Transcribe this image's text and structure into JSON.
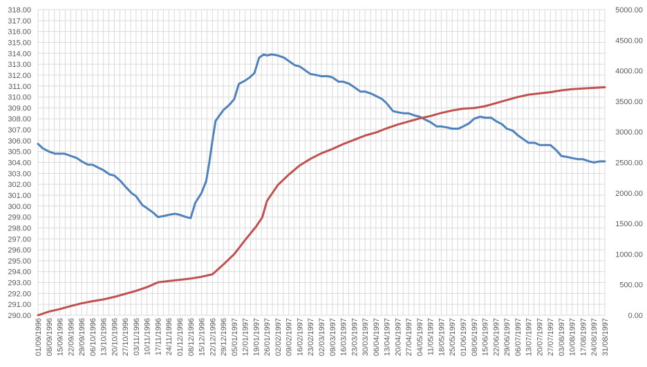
{
  "chart_data": {
    "type": "line",
    "title": "",
    "xlabel": "",
    "ylabel_left": "",
    "ylabel_right": "",
    "grid": true,
    "legend": "none",
    "x_tick_labels": [
      "01/09/1996",
      "08/09/1996",
      "15/09/1996",
      "22/09/1996",
      "29/09/1996",
      "06/10/1996",
      "13/10/1996",
      "20/10/1996",
      "27/10/1996",
      "03/11/1996",
      "10/11/1996",
      "17/11/1996",
      "24/11/1996",
      "01/12/1996",
      "08/12/1996",
      "15/12/1996",
      "22/12/1996",
      "29/12/1996",
      "05/01/1997",
      "12/01/1997",
      "19/01/1997",
      "26/01/1997",
      "02/02/1997",
      "09/02/1997",
      "16/02/1997",
      "23/02/1997",
      "02/03/1997",
      "09/03/1997",
      "16/03/1997",
      "23/03/1997",
      "30/03/1997",
      "06/04/1997",
      "13/04/1997",
      "20/04/1997",
      "27/04/1997",
      "04/05/1997",
      "11/05/1997",
      "18/05/1997",
      "25/05/1997",
      "01/06/1997",
      "08/06/1997",
      "15/06/1997",
      "22/06/1997",
      "29/06/1997",
      "06/07/1997",
      "13/07/1997",
      "20/07/1997",
      "27/07/1997",
      "03/08/1997",
      "10/08/1997",
      "17/08/1997",
      "24/08/1997",
      "31/08/1997"
    ],
    "y_left": {
      "min": 290,
      "max": 318,
      "step": 1,
      "tick_labels": [
        "290.00",
        "291.00",
        "292.00",
        "293.00",
        "294.00",
        "295.00",
        "296.00",
        "297.00",
        "298.00",
        "299.00",
        "300.00",
        "301.00",
        "302.00",
        "303.00",
        "304.00",
        "305.00",
        "306.00",
        "307.00",
        "308.00",
        "309.00",
        "310.00",
        "311.00",
        "312.00",
        "313.00",
        "314.00",
        "315.00",
        "316.00",
        "317.00",
        "318.00"
      ]
    },
    "y_right": {
      "min": 0,
      "max": 5000,
      "step": 500,
      "tick_labels": [
        "0.00",
        "500.00",
        "1000.00",
        "1500.00",
        "2000.00",
        "2500.00",
        "3000.00",
        "3500.00",
        "4000.00",
        "4500.00",
        "5000.00"
      ]
    },
    "series": [
      {
        "axis": "left",
        "color": "#4f81bd",
        "points": [
          {
            "x": "01/09/1996",
            "y": 305.7
          },
          {
            "x": "04/09/1996",
            "y": 305.3
          },
          {
            "x": "08/09/1996",
            "y": 305.0
          },
          {
            "x": "12/09/1996",
            "y": 304.8
          },
          {
            "x": "15/09/1996",
            "y": 304.8
          },
          {
            "x": "18/09/1996",
            "y": 304.8
          },
          {
            "x": "22/09/1996",
            "y": 304.6
          },
          {
            "x": "26/09/1996",
            "y": 304.4
          },
          {
            "x": "29/09/1996",
            "y": 304.1
          },
          {
            "x": "03/10/1996",
            "y": 303.8
          },
          {
            "x": "06/10/1996",
            "y": 303.8
          },
          {
            "x": "10/10/1996",
            "y": 303.5
          },
          {
            "x": "13/10/1996",
            "y": 303.3
          },
          {
            "x": "17/10/1996",
            "y": 302.9
          },
          {
            "x": "20/10/1996",
            "y": 302.8
          },
          {
            "x": "24/10/1996",
            "y": 302.3
          },
          {
            "x": "27/10/1996",
            "y": 301.8
          },
          {
            "x": "31/10/1996",
            "y": 301.2
          },
          {
            "x": "03/11/1996",
            "y": 300.9
          },
          {
            "x": "07/11/1996",
            "y": 300.1
          },
          {
            "x": "10/11/1996",
            "y": 299.8
          },
          {
            "x": "14/11/1996",
            "y": 299.4
          },
          {
            "x": "17/11/1996",
            "y": 299.0
          },
          {
            "x": "21/11/1996",
            "y": 299.1
          },
          {
            "x": "24/11/1996",
            "y": 299.2
          },
          {
            "x": "28/11/1996",
            "y": 299.3
          },
          {
            "x": "01/12/1996",
            "y": 299.2
          },
          {
            "x": "05/12/1996",
            "y": 299.0
          },
          {
            "x": "08/12/1996",
            "y": 298.9
          },
          {
            "x": "11/12/1996",
            "y": 300.3
          },
          {
            "x": "15/12/1996",
            "y": 301.2
          },
          {
            "x": "18/12/1996",
            "y": 302.3
          },
          {
            "x": "20/12/1996",
            "y": 304.0
          },
          {
            "x": "22/12/1996",
            "y": 306.0
          },
          {
            "x": "24/12/1996",
            "y": 307.8
          },
          {
            "x": "29/12/1996",
            "y": 308.8
          },
          {
            "x": "02/01/1997",
            "y": 309.3
          },
          {
            "x": "05/01/1997",
            "y": 309.8
          },
          {
            "x": "08/01/1997",
            "y": 311.2
          },
          {
            "x": "12/01/1997",
            "y": 311.5
          },
          {
            "x": "15/01/1997",
            "y": 311.8
          },
          {
            "x": "18/01/1997",
            "y": 312.2
          },
          {
            "x": "21/01/1997",
            "y": 313.6
          },
          {
            "x": "24/01/1997",
            "y": 313.9
          },
          {
            "x": "26/01/1997",
            "y": 313.8
          },
          {
            "x": "29/01/1997",
            "y": 313.9
          },
          {
            "x": "02/02/1997",
            "y": 313.8
          },
          {
            "x": "06/02/1997",
            "y": 313.6
          },
          {
            "x": "09/02/1997",
            "y": 313.3
          },
          {
            "x": "13/02/1997",
            "y": 312.9
          },
          {
            "x": "16/02/1997",
            "y": 312.8
          },
          {
            "x": "20/02/1997",
            "y": 312.4
          },
          {
            "x": "23/02/1997",
            "y": 312.1
          },
          {
            "x": "27/02/1997",
            "y": 312.0
          },
          {
            "x": "02/03/1997",
            "y": 311.9
          },
          {
            "x": "06/03/1997",
            "y": 311.9
          },
          {
            "x": "09/03/1997",
            "y": 311.8
          },
          {
            "x": "13/03/1997",
            "y": 311.4
          },
          {
            "x": "16/03/1997",
            "y": 311.4
          },
          {
            "x": "20/03/1997",
            "y": 311.2
          },
          {
            "x": "23/03/1997",
            "y": 310.9
          },
          {
            "x": "27/03/1997",
            "y": 310.5
          },
          {
            "x": "30/03/1997",
            "y": 310.5
          },
          {
            "x": "03/04/1997",
            "y": 310.3
          },
          {
            "x": "06/04/1997",
            "y": 310.1
          },
          {
            "x": "10/04/1997",
            "y": 309.8
          },
          {
            "x": "13/04/1997",
            "y": 309.4
          },
          {
            "x": "17/04/1997",
            "y": 308.7
          },
          {
            "x": "20/04/1997",
            "y": 308.6
          },
          {
            "x": "24/04/1997",
            "y": 308.5
          },
          {
            "x": "27/04/1997",
            "y": 308.5
          },
          {
            "x": "01/05/1997",
            "y": 308.3
          },
          {
            "x": "04/05/1997",
            "y": 308.2
          },
          {
            "x": "08/05/1997",
            "y": 307.9
          },
          {
            "x": "11/05/1997",
            "y": 307.7
          },
          {
            "x": "15/05/1997",
            "y": 307.3
          },
          {
            "x": "18/05/1997",
            "y": 307.3
          },
          {
            "x": "22/05/1997",
            "y": 307.2
          },
          {
            "x": "25/05/1997",
            "y": 307.1
          },
          {
            "x": "29/05/1997",
            "y": 307.1
          },
          {
            "x": "01/06/1997",
            "y": 307.3
          },
          {
            "x": "05/06/1997",
            "y": 307.6
          },
          {
            "x": "08/06/1997",
            "y": 308.0
          },
          {
            "x": "12/06/1997",
            "y": 308.2
          },
          {
            "x": "15/06/1997",
            "y": 308.1
          },
          {
            "x": "19/06/1997",
            "y": 308.1
          },
          {
            "x": "22/06/1997",
            "y": 307.8
          },
          {
            "x": "26/06/1997",
            "y": 307.5
          },
          {
            "x": "29/06/1997",
            "y": 307.1
          },
          {
            "x": "03/07/1997",
            "y": 306.9
          },
          {
            "x": "06/07/1997",
            "y": 306.5
          },
          {
            "x": "10/07/1997",
            "y": 306.1
          },
          {
            "x": "13/07/1997",
            "y": 305.8
          },
          {
            "x": "17/07/1997",
            "y": 305.8
          },
          {
            "x": "20/07/1997",
            "y": 305.6
          },
          {
            "x": "24/07/1997",
            "y": 305.6
          },
          {
            "x": "27/07/1997",
            "y": 305.6
          },
          {
            "x": "31/07/1997",
            "y": 305.1
          },
          {
            "x": "03/08/1997",
            "y": 304.6
          },
          {
            "x": "07/08/1997",
            "y": 304.5
          },
          {
            "x": "10/08/1997",
            "y": 304.4
          },
          {
            "x": "14/08/1997",
            "y": 304.3
          },
          {
            "x": "17/08/1997",
            "y": 304.3
          },
          {
            "x": "21/08/1997",
            "y": 304.1
          },
          {
            "x": "24/08/1997",
            "y": 304.0
          },
          {
            "x": "28/08/1997",
            "y": 304.1
          },
          {
            "x": "31/08/1997",
            "y": 304.1
          }
        ]
      },
      {
        "axis": "right",
        "color": "#c0504d",
        "points": [
          {
            "x": "01/09/1996",
            "y": 0
          },
          {
            "x": "08/09/1996",
            "y": 60
          },
          {
            "x": "15/09/1996",
            "y": 100
          },
          {
            "x": "22/09/1996",
            "y": 150
          },
          {
            "x": "29/09/1996",
            "y": 195
          },
          {
            "x": "06/10/1996",
            "y": 230
          },
          {
            "x": "13/10/1996",
            "y": 260
          },
          {
            "x": "20/10/1996",
            "y": 300
          },
          {
            "x": "27/10/1996",
            "y": 350
          },
          {
            "x": "03/11/1996",
            "y": 400
          },
          {
            "x": "10/11/1996",
            "y": 460
          },
          {
            "x": "17/11/1996",
            "y": 540
          },
          {
            "x": "24/11/1996",
            "y": 560
          },
          {
            "x": "01/12/1996",
            "y": 580
          },
          {
            "x": "08/12/1996",
            "y": 600
          },
          {
            "x": "15/12/1996",
            "y": 630
          },
          {
            "x": "22/12/1996",
            "y": 670
          },
          {
            "x": "29/12/1996",
            "y": 830
          },
          {
            "x": "05/01/1997",
            "y": 1000
          },
          {
            "x": "12/01/1997",
            "y": 1230
          },
          {
            "x": "19/01/1997",
            "y": 1450
          },
          {
            "x": "23/01/1997",
            "y": 1600
          },
          {
            "x": "26/01/1997",
            "y": 1870
          },
          {
            "x": "02/02/1997",
            "y": 2130
          },
          {
            "x": "09/02/1997",
            "y": 2300
          },
          {
            "x": "16/02/1997",
            "y": 2450
          },
          {
            "x": "23/02/1997",
            "y": 2560
          },
          {
            "x": "02/03/1997",
            "y": 2650
          },
          {
            "x": "09/03/1997",
            "y": 2720
          },
          {
            "x": "16/03/1997",
            "y": 2800
          },
          {
            "x": "23/03/1997",
            "y": 2870
          },
          {
            "x": "30/03/1997",
            "y": 2940
          },
          {
            "x": "06/04/1997",
            "y": 2990
          },
          {
            "x": "13/04/1997",
            "y": 3060
          },
          {
            "x": "20/04/1997",
            "y": 3120
          },
          {
            "x": "27/04/1997",
            "y": 3170
          },
          {
            "x": "04/05/1997",
            "y": 3220
          },
          {
            "x": "11/05/1997",
            "y": 3260
          },
          {
            "x": "18/05/1997",
            "y": 3310
          },
          {
            "x": "25/05/1997",
            "y": 3350
          },
          {
            "x": "01/06/1997",
            "y": 3380
          },
          {
            "x": "08/06/1997",
            "y": 3390
          },
          {
            "x": "15/06/1997",
            "y": 3420
          },
          {
            "x": "22/06/1997",
            "y": 3470
          },
          {
            "x": "29/06/1997",
            "y": 3520
          },
          {
            "x": "06/07/1997",
            "y": 3570
          },
          {
            "x": "13/07/1997",
            "y": 3610
          },
          {
            "x": "20/07/1997",
            "y": 3630
          },
          {
            "x": "27/07/1997",
            "y": 3650
          },
          {
            "x": "03/08/1997",
            "y": 3680
          },
          {
            "x": "10/08/1997",
            "y": 3700
          },
          {
            "x": "17/08/1997",
            "y": 3710
          },
          {
            "x": "24/08/1997",
            "y": 3720
          },
          {
            "x": "31/08/1997",
            "y": 3730
          }
        ]
      }
    ]
  }
}
